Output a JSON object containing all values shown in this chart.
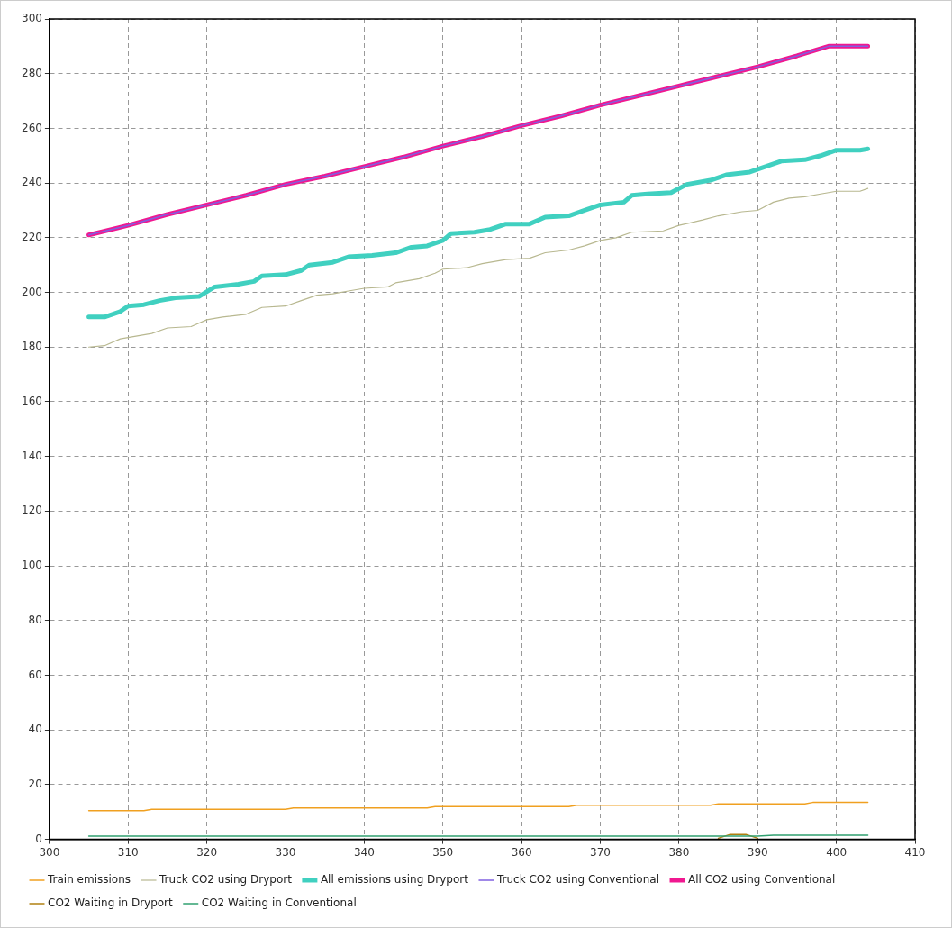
{
  "chart_data": {
    "type": "line",
    "xlim": [
      300,
      410
    ],
    "xticks": [
      300,
      310,
      320,
      330,
      340,
      350,
      360,
      370,
      380,
      390,
      400,
      410
    ],
    "ylim": [
      0,
      300
    ],
    "yticks": [
      0,
      20,
      40,
      60,
      80,
      100,
      120,
      140,
      160,
      180,
      200,
      220,
      240,
      260,
      280,
      300
    ],
    "grid": true,
    "legend": "bottom",
    "marker": "none",
    "line_style": "solid",
    "series": [
      {
        "name": "Train emissions",
        "color": "#f0a020",
        "x": [
          305,
          312,
          313,
          330,
          331,
          348,
          349,
          366,
          367,
          384,
          385,
          396,
          397,
          404
        ],
        "values": [
          10.5,
          10.5,
          11,
          11,
          11.5,
          11.5,
          12,
          12,
          12.5,
          12.5,
          13,
          13,
          13.5,
          13.5
        ]
      },
      {
        "name": "Truck CO2 using Dryport",
        "color": "#b8b890",
        "x": [
          305,
          307,
          309,
          311,
          313,
          315,
          318,
          320,
          322,
          325,
          327,
          330,
          332,
          334,
          336,
          338,
          340,
          343,
          344,
          347,
          349,
          350,
          353,
          355,
          358,
          361,
          363,
          366,
          368,
          370,
          372,
          374,
          378,
          380,
          383,
          385,
          388,
          390,
          392,
          394,
          396,
          398,
          400,
          403,
          404
        ],
        "values": [
          180,
          180.5,
          183,
          184,
          185,
          187,
          187.5,
          190,
          191,
          192,
          194.5,
          195,
          197,
          199,
          199.5,
          200.5,
          201.5,
          202,
          203.5,
          205,
          207,
          208.5,
          209,
          210.5,
          212,
          212.5,
          214.5,
          215.5,
          217,
          219,
          220,
          222,
          222.5,
          224.5,
          226.5,
          228,
          229.5,
          230,
          233,
          234.5,
          235,
          236,
          237,
          237,
          238
        ]
      },
      {
        "name": "All emissions using Dryport",
        "color": "#40d0c0",
        "x": [
          305,
          307,
          309,
          310,
          312,
          314,
          316,
          319,
          321,
          324,
          326,
          327,
          330,
          332,
          333,
          336,
          338,
          341,
          344,
          346,
          348,
          350,
          351,
          354,
          356,
          358,
          361,
          363,
          366,
          368,
          370,
          373,
          374,
          376,
          379,
          381,
          384,
          386,
          389,
          391,
          393,
          396,
          398,
          400,
          403,
          404
        ],
        "values": [
          191,
          191,
          193,
          195,
          195.5,
          197,
          198,
          198.5,
          202,
          203,
          204,
          206,
          206.5,
          208,
          210,
          211,
          213,
          213.5,
          214.5,
          216.5,
          217,
          219,
          221.5,
          222,
          223,
          225,
          225,
          227.5,
          228,
          230,
          232,
          233,
          235.5,
          236,
          236.5,
          239.5,
          241,
          243,
          244,
          246,
          248,
          248.5,
          250,
          252,
          252,
          252.5
        ]
      },
      {
        "name": "Truck CO2 using Conventional",
        "color": "#8060e0",
        "x": [
          305,
          310,
          315,
          320,
          325,
          330,
          335,
          340,
          345,
          350,
          355,
          360,
          365,
          370,
          375,
          380,
          385,
          390,
          395,
          399,
          404
        ],
        "values": [
          221,
          224.5,
          228.5,
          232,
          235.5,
          239.5,
          242.5,
          246,
          249.5,
          253.5,
          257,
          261,
          264.5,
          268.5,
          272,
          275.5,
          279,
          282.5,
          286.5,
          290,
          290
        ]
      },
      {
        "name": "All CO2 using Conventional",
        "color": "#f01890",
        "x": [
          305,
          310,
          315,
          320,
          325,
          330,
          335,
          340,
          345,
          350,
          355,
          360,
          365,
          370,
          375,
          380,
          385,
          390,
          395,
          399,
          404
        ],
        "values": [
          221,
          224.5,
          228.5,
          232,
          235.5,
          239.5,
          242.5,
          246,
          249.5,
          253.5,
          257,
          261,
          264.5,
          268.5,
          272,
          275.5,
          279,
          282.5,
          286.5,
          290,
          290
        ]
      },
      {
        "name": "CO2 Waiting in Dryport",
        "color": "#b08010",
        "x": [
          385,
          386.5,
          388.5,
          390
        ],
        "values": [
          0.4,
          1.8,
          1.8,
          0.4
        ]
      },
      {
        "name": "CO2 Waiting in Conventional",
        "color": "#30a070",
        "x": [
          305,
          390,
          392,
          404
        ],
        "values": [
          1.2,
          1.2,
          1.5,
          1.5
        ]
      }
    ]
  }
}
